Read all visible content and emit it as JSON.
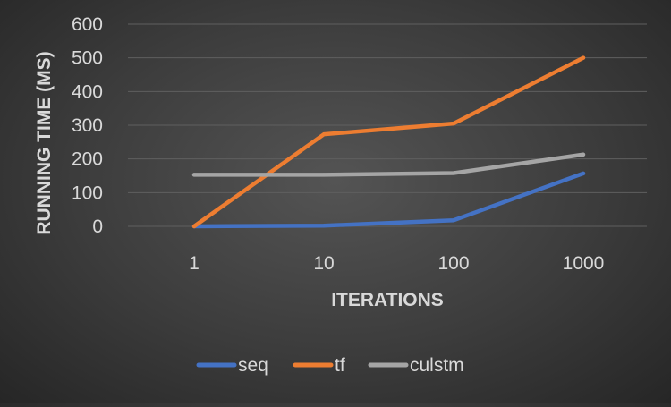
{
  "chart_data": {
    "type": "line",
    "title": "",
    "xlabel": "ITERATIONS",
    "ylabel": "RUNNING TIME (MS)",
    "categories": [
      "1",
      "10",
      "100",
      "1000"
    ],
    "ylim": [
      0,
      600
    ],
    "yticks": [
      0,
      100,
      200,
      300,
      400,
      500,
      600
    ],
    "grid": true,
    "legend": "bottom",
    "series": [
      {
        "name": "seq",
        "color": "#4472C4",
        "values": [
          0,
          2,
          18,
          157
        ]
      },
      {
        "name": "tf",
        "color": "#ED7D31",
        "values": [
          0,
          273,
          305,
          500
        ]
      },
      {
        "name": "culstm",
        "color": "#A5A5A5",
        "values": [
          153,
          153,
          158,
          213
        ]
      }
    ]
  },
  "colors": {
    "text": "#d9d9d9",
    "gridline": "#5f5f5f"
  }
}
